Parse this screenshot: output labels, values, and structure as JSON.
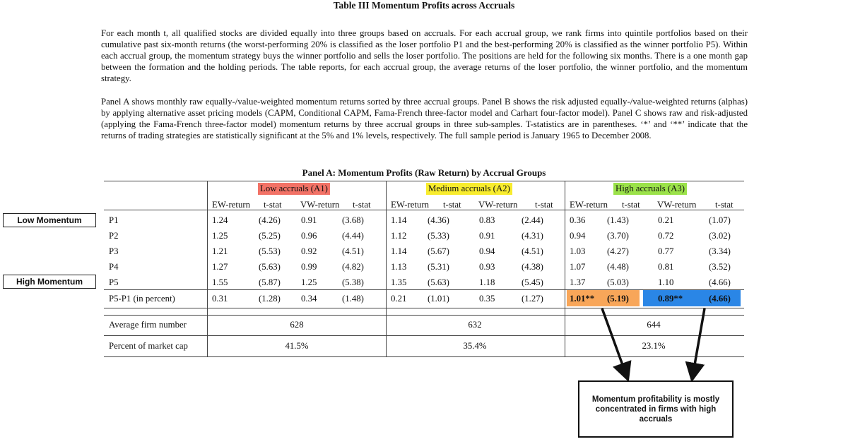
{
  "title": "Table III Momentum Profits across Accruals",
  "paragraph1": "For each month t, all qualified stocks are divided equally into three groups based on accruals. For each accrual group, we rank firms into quintile portfolios based on their cumulative past six-month returns (the worst-performing 20% is classified as the loser portfolio P1 and the best-performing 20% is classified as the winner portfolio P5). Within each accrual group, the momentum strategy buys the winner portfolio and sells the loser portfolio. The positions are held for the following six months. There is a one month gap between the formation and the holding periods. The table reports, for each accrual group, the average returns of the loser portfolio, the winner portfolio, and the momentum strategy.",
  "paragraph2": "Panel A shows monthly raw equally-/value-weighted momentum returns sorted by three accrual groups. Panel B shows the risk adjusted equally-/value-weighted returns (alphas) by applying alternative asset pricing models (CAPM, Conditional CAPM, Fama-French three-factor model and Carhart four-factor model). Panel C shows raw and risk-adjusted (applying the Fama-French three-factor model) momentum returns by three accrual groups in three sub-samples. T-statistics are in parentheses. ‘*’ and ‘**’ indicate that the returns of trading strategies are statistically significant at the 5% and 1% levels, respectively. The full sample period is January 1965 to December 2008.",
  "panel_title": "Panel A: Momentum Profits (Raw Return) by Accrual Groups",
  "groups": [
    "Low accruals (A1)",
    "Medium accruals (A2)",
    "High accruals (A3)"
  ],
  "col_headers": [
    "EW-return",
    "t-stat",
    "VW-return",
    "t-stat"
  ],
  "rows": [
    {
      "label": "P1",
      "cells": [
        "1.24",
        "(4.26)",
        "0.91",
        "(3.68)",
        "1.14",
        "(4.36)",
        "0.83",
        "(2.44)",
        "0.36",
        "(1.43)",
        "0.21",
        "(1.07)"
      ]
    },
    {
      "label": "P2",
      "cells": [
        "1.25",
        "(5.25)",
        "0.96",
        "(4.44)",
        "1.12",
        "(5.33)",
        "0.91",
        "(4.31)",
        "0.94",
        "(3.70)",
        "0.72",
        "(3.02)"
      ]
    },
    {
      "label": "P3",
      "cells": [
        "1.21",
        "(5.53)",
        "0.92",
        "(4.51)",
        "1.14",
        "(5.67)",
        "0.94",
        "(4.51)",
        "1.03",
        "(4.27)",
        "0.77",
        "(3.34)"
      ]
    },
    {
      "label": "P4",
      "cells": [
        "1.27",
        "(5.63)",
        "0.99",
        "(4.82)",
        "1.13",
        "(5.31)",
        "0.93",
        "(4.38)",
        "1.07",
        "(4.48)",
        "0.81",
        "(3.52)"
      ]
    },
    {
      "label": "P5",
      "cells": [
        "1.55",
        "(5.87)",
        "1.25",
        "(5.38)",
        "1.35",
        "(5.63)",
        "1.18",
        "(5.45)",
        "1.37",
        "(5.03)",
        "1.10",
        "(4.66)"
      ]
    },
    {
      "label": "P5-P1 (in percent)",
      "cells": [
        "0.31",
        "(1.28)",
        "0.34",
        "(1.48)",
        "0.21",
        "(1.01)",
        "0.35",
        "(1.27)",
        "1.01**",
        "(5.19)",
        "0.89**",
        "(4.66)"
      ]
    }
  ],
  "summary_rows": [
    {
      "label": "Average firm number",
      "values": [
        "628",
        "632",
        "644"
      ]
    },
    {
      "label": "Percent of market cap",
      "values": [
        "41.5%",
        "35.4%",
        "23.1%"
      ]
    }
  ],
  "annotations": {
    "low_momentum": "Low Momentum",
    "high_momentum": "High Momentum",
    "callout": "Momentum profitability is mostly concentrated in firms with high accruals"
  },
  "colors": {
    "low_accruals": "#f27266",
    "medium_accruals": "#f8ec2e",
    "high_accruals": "#9be24a",
    "highlight_ew": "#f8a659",
    "highlight_vw": "#2a86e6"
  }
}
